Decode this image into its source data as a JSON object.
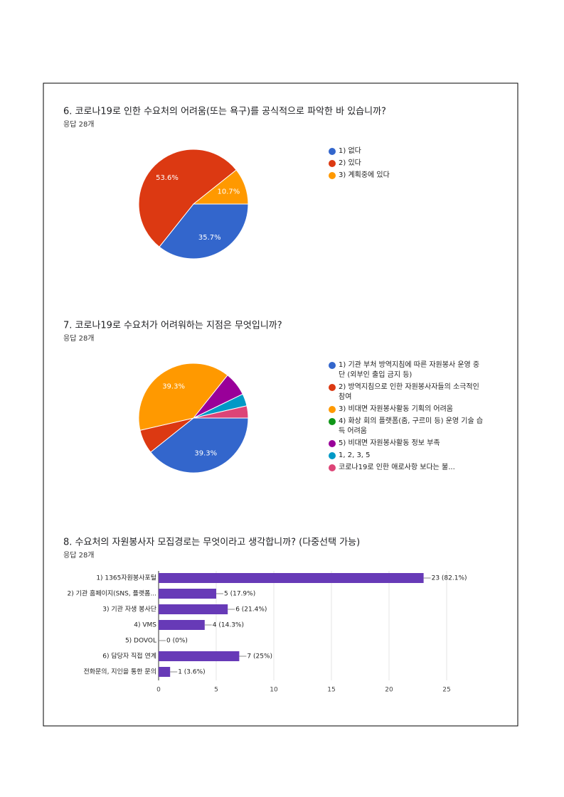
{
  "chart_data": [
    {
      "type": "pie",
      "title": "6. 코로나19로 인한 수요처의 어려움(또는 욕구)를 공식적으로 파악한 바 있습니까?",
      "subtitle": "응답 28개",
      "categories": [
        "1) 없다",
        "2) 있다",
        "3) 계획중에 있다"
      ],
      "values": [
        35.7,
        53.6,
        10.7
      ],
      "value_labels": [
        "35.7%",
        "53.6%",
        "10.7%"
      ],
      "colors": [
        "#3366cc",
        "#dc3912",
        "#ff9900"
      ],
      "legend": "right"
    },
    {
      "type": "pie",
      "title": "7. 코로나19로 수요처가 어려워하는 지점은 무엇입니까?",
      "subtitle": "응답 28개",
      "categories": [
        "1) 기관 부처 방역지침에 따른 자원봉사 운영 중단 (외부인 출입 금지 등)",
        "2) 방역지침으로 인한 자원봉사자들의 소극적인 참여",
        "3) 비대면 자원봉사활동 기획의 어려움",
        "4) 화상 회의 플랫폼(줌, 구르미 등) 운영 기술 습득 어려움",
        "5) 비대면 자원봉사활동 정보 부족",
        "1, 2, 3, 5",
        "코로나19로 인한 애로사항 보다는 불..."
      ],
      "values": [
        39.3,
        7.1,
        39.3,
        0,
        7.1,
        3.6,
        3.6
      ],
      "value_labels": [
        "39.3%",
        null,
        "39.3%",
        null,
        null,
        null,
        null
      ],
      "colors": [
        "#3366cc",
        "#dc3912",
        "#ff9900",
        "#109618",
        "#990099",
        "#0099c6",
        "#dd4477"
      ],
      "legend": "right"
    },
    {
      "type": "hbar",
      "title": "8. 수요처의 자원봉사자 모집경로는 무엇이라고 생각합니까? (다중선택 가능)",
      "subtitle": "응답 28개",
      "categories": [
        "1) 1365자원봉사포털",
        "2) 기관 홈페이지(SNS, 플랫폼...",
        "3) 기관 자생 봉사단",
        "4) VMS",
        "5) DOVOL",
        "6) 담당자 직접 연계",
        "전화문의, 지인을 통한 문의"
      ],
      "values": [
        23,
        5,
        6,
        4,
        0,
        7,
        1
      ],
      "value_labels": [
        "23 (82.1%)",
        "5 (17.9%)",
        "6 (21.4%)",
        "4 (14.3%)",
        "0 (0%)",
        "7 (25%)",
        "1 (3.6%)"
      ],
      "color": "#673ab7",
      "xlim": [
        0,
        25
      ],
      "xticks": [
        0,
        5,
        10,
        15,
        20,
        25
      ],
      "grid": true
    }
  ]
}
